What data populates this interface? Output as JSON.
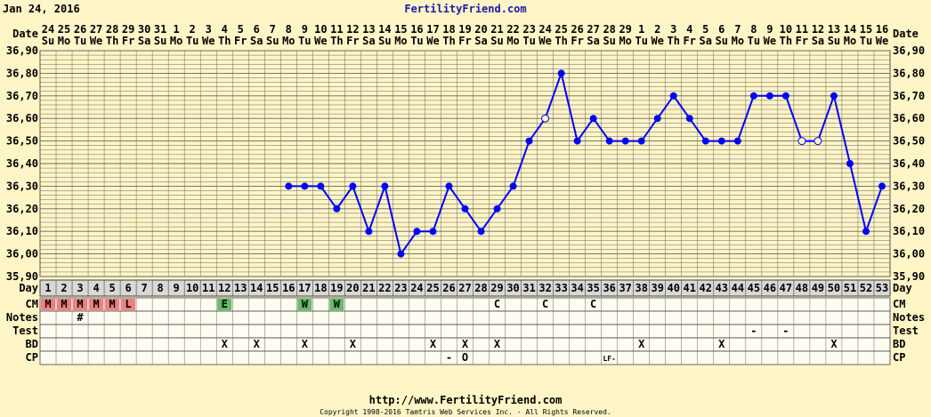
{
  "header": {
    "date": "Jan 24, 2016",
    "site": "FertilityFriend.com"
  },
  "footer": {
    "url": "http://www.FertilityFriend.com",
    "copyright": "Copyright 1998-2016 Tamtris Web Services Inc. - All Rights Reserved."
  },
  "row_labels": {
    "date": "Date",
    "day": "Day",
    "cm": "CM",
    "notes": "Notes",
    "test": "Test",
    "bd": "BD",
    "cp": "CP"
  },
  "colors": {
    "background": "#fff5c6",
    "line": "#0000ff",
    "grid": "#555555",
    "menses": "#f08080",
    "egg_white": "#66bb66"
  },
  "chart_data": {
    "type": "line",
    "ylim": [
      35.9,
      36.9
    ],
    "yticks": [
      "35,90",
      "36,00",
      "36,10",
      "36,20",
      "36,30",
      "36,40",
      "36,50",
      "36,60",
      "36,70",
      "36,80",
      "36,90"
    ],
    "dates": [
      "24",
      "25",
      "26",
      "27",
      "28",
      "29",
      "30",
      "31",
      "1",
      "2",
      "3",
      "4",
      "5",
      "6",
      "7",
      "8",
      "9",
      "10",
      "11",
      "12",
      "13",
      "14",
      "15",
      "16",
      "17",
      "18",
      "19",
      "20",
      "21",
      "22",
      "23",
      "24",
      "25",
      "26",
      "27",
      "28",
      "29",
      "1",
      "2",
      "3",
      "4",
      "5",
      "6",
      "7",
      "8",
      "9",
      "10",
      "11",
      "12",
      "13",
      "14",
      "15",
      "16"
    ],
    "weekdays": [
      "Su",
      "Mo",
      "Tu",
      "We",
      "Th",
      "Fr",
      "Sa",
      "Su",
      "Mo",
      "Tu",
      "We",
      "Th",
      "Fr",
      "Sa",
      "Su",
      "Mo",
      "Tu",
      "We",
      "Th",
      "Fr",
      "Sa",
      "Su",
      "Mo",
      "Tu",
      "We",
      "Th",
      "Fr",
      "Sa",
      "Su",
      "Mo",
      "Tu",
      "We",
      "Th",
      "Fr",
      "Sa",
      "Su",
      "Mo",
      "Tu",
      "We",
      "Th",
      "Fr",
      "Sa",
      "Su",
      "Mo",
      "Tu",
      "We",
      "Th",
      "Fr",
      "Sa",
      "Su",
      "Mo",
      "Tu",
      "We"
    ],
    "days": [
      1,
      2,
      3,
      4,
      5,
      6,
      7,
      8,
      9,
      10,
      11,
      12,
      13,
      14,
      15,
      16,
      17,
      18,
      19,
      20,
      21,
      22,
      23,
      24,
      25,
      26,
      27,
      28,
      29,
      30,
      31,
      32,
      33,
      34,
      35,
      36,
      37,
      38,
      39,
      40,
      41,
      42,
      43,
      44,
      45,
      46,
      47,
      48,
      49,
      50,
      51,
      52,
      53
    ],
    "series": [
      {
        "points": [
          {
            "day": 16,
            "temp": 36.3
          },
          {
            "day": 17,
            "temp": 36.3
          },
          {
            "day": 18,
            "temp": 36.3
          },
          {
            "day": 19,
            "temp": 36.2
          },
          {
            "day": 20,
            "temp": 36.3
          },
          {
            "day": 21,
            "temp": 36.1
          },
          {
            "day": 22,
            "temp": 36.3
          },
          {
            "day": 23,
            "temp": 36.0
          },
          {
            "day": 24,
            "temp": 36.1
          },
          {
            "day": 25,
            "temp": 36.1
          },
          {
            "day": 26,
            "temp": 36.3
          },
          {
            "day": 27,
            "temp": 36.2
          },
          {
            "day": 28,
            "temp": 36.1
          },
          {
            "day": 29,
            "temp": 36.2
          },
          {
            "day": 30,
            "temp": 36.3
          },
          {
            "day": 31,
            "temp": 36.5
          },
          {
            "day": 32,
            "temp": 36.6,
            "open": true
          },
          {
            "day": 33,
            "temp": 36.8
          },
          {
            "day": 34,
            "temp": 36.5
          },
          {
            "day": 35,
            "temp": 36.6
          },
          {
            "day": 36,
            "temp": 36.5
          },
          {
            "day": 37,
            "temp": 36.5
          },
          {
            "day": 38,
            "temp": 36.5
          },
          {
            "day": 39,
            "temp": 36.6
          },
          {
            "day": 40,
            "temp": 36.7
          },
          {
            "day": 41,
            "temp": 36.6
          },
          {
            "day": 42,
            "temp": 36.5
          },
          {
            "day": 43,
            "temp": 36.5
          },
          {
            "day": 44,
            "temp": 36.5
          },
          {
            "day": 45,
            "temp": 36.7
          },
          {
            "day": 46,
            "temp": 36.7
          },
          {
            "day": 47,
            "temp": 36.7
          },
          {
            "day": 48,
            "temp": 36.5,
            "open": true
          },
          {
            "day": 49,
            "temp": 36.5,
            "open": true
          },
          {
            "day": 50,
            "temp": 36.7
          },
          {
            "day": 51,
            "temp": 36.4
          },
          {
            "day": 52,
            "temp": 36.1
          },
          {
            "day": 53,
            "temp": 36.3
          }
        ]
      }
    ],
    "rows": {
      "cm": [
        {
          "day": 1,
          "v": "M",
          "fill": "menses"
        },
        {
          "day": 2,
          "v": "M",
          "fill": "menses"
        },
        {
          "day": 3,
          "v": "M",
          "fill": "menses"
        },
        {
          "day": 4,
          "v": "M",
          "fill": "menses"
        },
        {
          "day": 5,
          "v": "M",
          "fill": "menses"
        },
        {
          "day": 6,
          "v": "L",
          "fill": "menses"
        },
        {
          "day": 12,
          "v": "E",
          "fill": "egg_white"
        },
        {
          "day": 17,
          "v": "W",
          "fill": "egg_white"
        },
        {
          "day": 19,
          "v": "W",
          "fill": "egg_white"
        },
        {
          "day": 29,
          "v": "C"
        },
        {
          "day": 32,
          "v": "C"
        },
        {
          "day": 35,
          "v": "C"
        }
      ],
      "notes": [
        {
          "day": 3,
          "v": "#"
        }
      ],
      "test": [
        {
          "day": 45,
          "v": "-"
        },
        {
          "day": 47,
          "v": "-"
        }
      ],
      "bd": [
        {
          "day": 12,
          "v": "X"
        },
        {
          "day": 14,
          "v": "X"
        },
        {
          "day": 17,
          "v": "X"
        },
        {
          "day": 20,
          "v": "X"
        },
        {
          "day": 25,
          "v": "X"
        },
        {
          "day": 27,
          "v": "X"
        },
        {
          "day": 29,
          "v": "X"
        },
        {
          "day": 38,
          "v": "X"
        },
        {
          "day": 43,
          "v": "X"
        },
        {
          "day": 50,
          "v": "X"
        }
      ],
      "cp": [
        {
          "day": 26,
          "v": "-"
        },
        {
          "day": 27,
          "v": "O"
        },
        {
          "day": 36,
          "v": "LF-"
        }
      ]
    }
  }
}
